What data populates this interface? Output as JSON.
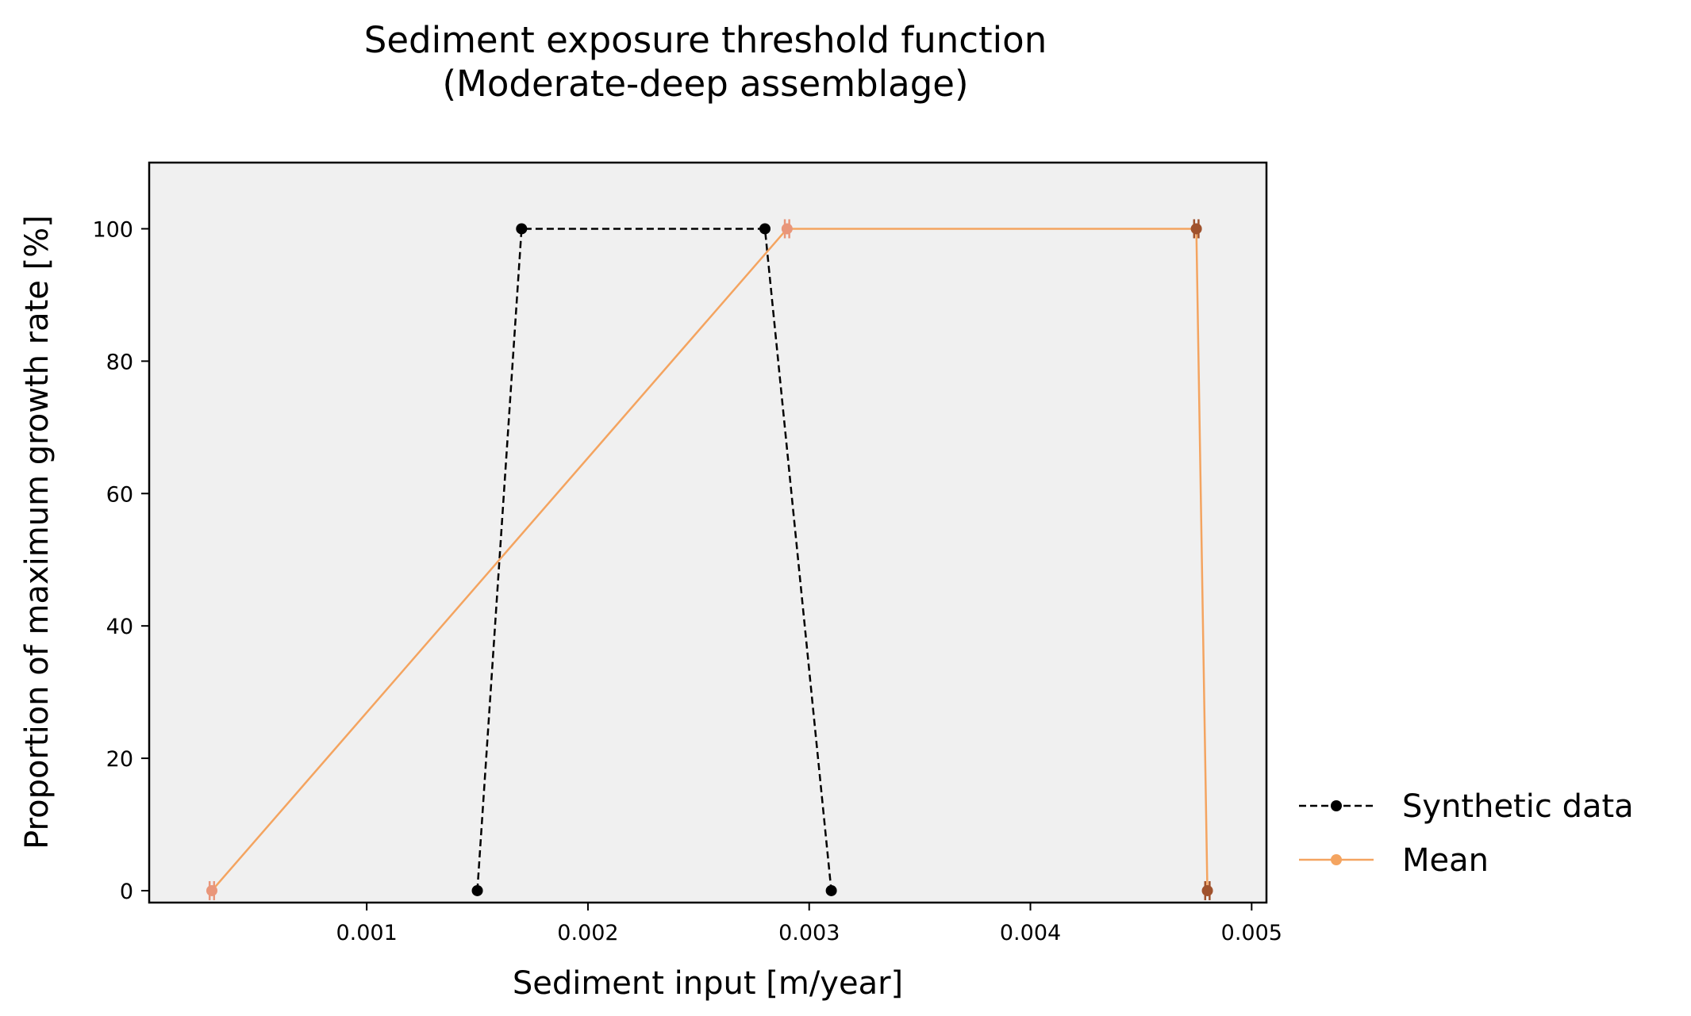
{
  "chart_data": {
    "type": "line",
    "title": "Sediment exposure threshold function",
    "subtitle": "(Moderate-deep assemblage)",
    "xlabel": "Sediment input [m/year]",
    "ylabel": "Proportion of maximum growth rate [%]",
    "xlim": [
      1.67e-05,
      0.005067
    ],
    "ylim": [
      -1.8,
      110
    ],
    "xticks": [
      "0.001",
      "0.002",
      "0.003",
      "0.004",
      "0.005"
    ],
    "yticks": [
      "0",
      "20",
      "40",
      "60",
      "80",
      "100"
    ],
    "grid": false,
    "legend_position": "outside-right-bottom",
    "series": [
      {
        "name": "Synthetic data",
        "style": "dashed",
        "color": "#000000",
        "x": [
          0.0015,
          0.0017,
          0.0028,
          0.0031
        ],
        "y": [
          0,
          100,
          100,
          0
        ]
      },
      {
        "name": "Mean",
        "style": "solid",
        "color": "#f4a460",
        "x": [
          0.0003,
          0.0029,
          0.00475,
          0.0048
        ],
        "y": [
          0,
          100,
          100,
          0
        ],
        "marker_colors": [
          "#e9967a",
          "#e9967a",
          "#a0522d",
          "#a0522d"
        ],
        "x_err": [
          1e-05,
          1e-05,
          1e-05,
          1e-05
        ]
      }
    ],
    "colors": {
      "plot_background": "#f0f0f0",
      "axes": "#000000"
    }
  }
}
